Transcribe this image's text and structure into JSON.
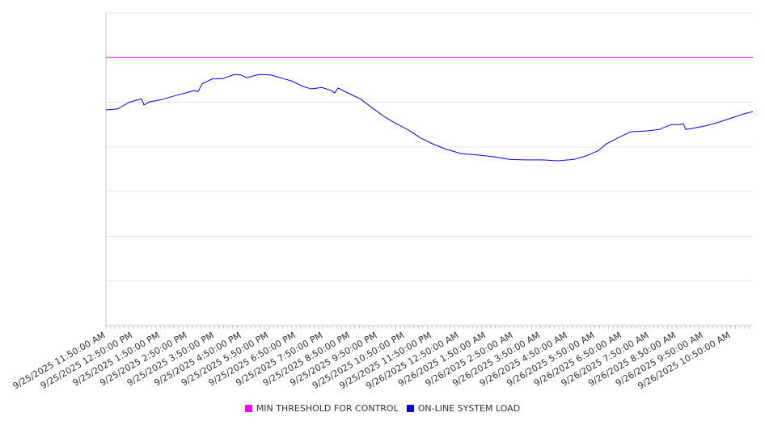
{
  "chart_data": {
    "type": "line",
    "title": "",
    "xlabel": "",
    "ylabel": "",
    "x_unit": "hours since 9/25/2025 11:50:00 AM",
    "xlim": [
      0,
      23.81
    ],
    "ylim": [
      0,
      7
    ],
    "grid": true,
    "legend_placement": "bottom-center",
    "x_tick_labels": [
      "9/25/2025 11:50:00 AM",
      "9/25/2025 12:50:00 PM",
      "9/25/2025 1:50:00 PM",
      "9/25/2025 2:50:00 PM",
      "9/25/2025 3:50:00 PM",
      "9/25/2025 4:50:00 PM",
      "9/25/2025 5:50:00 PM",
      "9/25/2025 6:50:00 PM",
      "9/25/2025 7:50:00 PM",
      "9/25/2025 8:50:00 PM",
      "9/25/2025 9:50:00 PM",
      "9/25/2025 10:50:00 PM",
      "9/25/2025 11:50:00 PM",
      "9/26/2025 12:50:00 AM",
      "9/26/2025 1:50:00 AM",
      "9/26/2025 2:50:00 AM",
      "9/26/2025 3:50:00 AM",
      "9/26/2025 4:50:00 AM",
      "9/26/2025 5:50:00 AM",
      "9/26/2025 6:50:00 AM",
      "9/26/2025 7:50:00 AM",
      "9/26/2025 8:50:00 AM",
      "9/26/2025 9:50:00 AM",
      "9/26/2025 10:50:00 AM"
    ],
    "series": [
      {
        "name": "MIN THRESHOLD FOR CONTROL",
        "color": "#ff00ff",
        "x": [
          0,
          23.81
        ],
        "y": [
          6,
          6
        ]
      },
      {
        "name": "ON-LINE SYSTEM LOAD",
        "color": "#0000ff",
        "x": [
          0,
          0.42,
          0.86,
          1.31,
          1.4,
          1.61,
          2.05,
          2.5,
          2.95,
          3.24,
          3.39,
          3.54,
          3.9,
          4.29,
          4.73,
          4.97,
          5.18,
          5.63,
          6.07,
          6.52,
          6.82,
          7.26,
          7.56,
          7.95,
          8.3,
          8.42,
          8.54,
          8.9,
          9.35,
          9.79,
          10.24,
          10.68,
          11.13,
          11.58,
          12.02,
          12.47,
          13.07,
          13.66,
          14.26,
          14.85,
          15.45,
          16.04,
          16.64,
          17.23,
          17.68,
          18.13,
          18.42,
          18.87,
          19.32,
          19.91,
          20.36,
          20.8,
          21.1,
          21.25,
          21.34,
          21.7,
          22.14,
          22.59,
          23.04,
          23.48,
          23.81
        ],
        "y": [
          4.83,
          4.85,
          5.0,
          5.08,
          4.94,
          5.01,
          5.06,
          5.14,
          5.21,
          5.26,
          5.24,
          5.41,
          5.52,
          5.53,
          5.62,
          5.61,
          5.55,
          5.62,
          5.61,
          5.53,
          5.48,
          5.35,
          5.3,
          5.33,
          5.26,
          5.21,
          5.32,
          5.21,
          5.08,
          4.88,
          4.68,
          4.52,
          4.38,
          4.2,
          4.07,
          3.96,
          3.85,
          3.82,
          3.78,
          3.72,
          3.71,
          3.71,
          3.69,
          3.72,
          3.8,
          3.92,
          4.07,
          4.21,
          4.34,
          4.36,
          4.39,
          4.5,
          4.5,
          4.52,
          4.39,
          4.43,
          4.48,
          4.56,
          4.65,
          4.74,
          4.79
        ]
      }
    ]
  }
}
